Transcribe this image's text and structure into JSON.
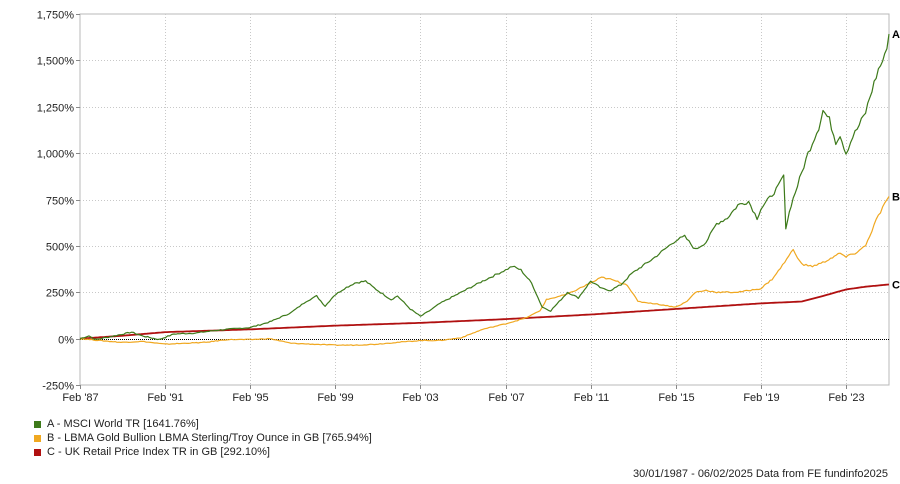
{
  "chart_data": {
    "type": "line",
    "title": "",
    "xlabel": "",
    "ylabel": "",
    "x_ticks": [
      "Feb '87",
      "Feb '91",
      "Feb '95",
      "Feb '99",
      "Feb '03",
      "Feb '07",
      "Feb '11",
      "Feb '15",
      "Feb '19",
      "Feb '23"
    ],
    "x_range": [
      1987.08,
      2025.1
    ],
    "ylim": [
      -250,
      1750
    ],
    "y_ticks": [
      -250,
      0,
      250,
      500,
      750,
      1000,
      1250,
      1500,
      1750
    ],
    "y_tick_labels": [
      "-250%",
      "0%",
      "250%",
      "500%",
      "750%",
      "1,000%",
      "1,250%",
      "1,500%",
      "1,750%"
    ],
    "grid": true,
    "legend_position": "bottom-left",
    "series": [
      {
        "name": "A - MSCI World TR [1641.76%]",
        "end_label": "A",
        "color": "#3d7a1a",
        "points": [
          [
            1987.08,
            0
          ],
          [
            1987.5,
            15
          ],
          [
            1987.8,
            -5
          ],
          [
            1988.5,
            10
          ],
          [
            1989.5,
            35
          ],
          [
            1990.0,
            15
          ],
          [
            1990.8,
            -5
          ],
          [
            1991.5,
            25
          ],
          [
            1992.5,
            30
          ],
          [
            1993.5,
            45
          ],
          [
            1994.5,
            55
          ],
          [
            1995.08,
            60
          ],
          [
            1996.0,
            90
          ],
          [
            1997.0,
            140
          ],
          [
            1997.7,
            200
          ],
          [
            1998.2,
            230
          ],
          [
            1998.6,
            175
          ],
          [
            1999.0,
            230
          ],
          [
            1999.5,
            270
          ],
          [
            2000.0,
            300
          ],
          [
            2000.5,
            310
          ],
          [
            2001.0,
            265
          ],
          [
            2001.7,
            210
          ],
          [
            2002.0,
            230
          ],
          [
            2002.6,
            160
          ],
          [
            2003.08,
            120
          ],
          [
            2003.5,
            150
          ],
          [
            2004.0,
            190
          ],
          [
            2005.0,
            250
          ],
          [
            2006.0,
            310
          ],
          [
            2007.08,
            370
          ],
          [
            2007.4,
            390
          ],
          [
            2007.8,
            370
          ],
          [
            2008.3,
            300
          ],
          [
            2008.8,
            170
          ],
          [
            2009.2,
            150
          ],
          [
            2009.6,
            200
          ],
          [
            2010.0,
            250
          ],
          [
            2010.5,
            220
          ],
          [
            2011.08,
            310
          ],
          [
            2011.6,
            270
          ],
          [
            2012.0,
            260
          ],
          [
            2012.5,
            290
          ],
          [
            2013.0,
            350
          ],
          [
            2014.0,
            430
          ],
          [
            2015.08,
            530
          ],
          [
            2015.5,
            550
          ],
          [
            2016.0,
            480
          ],
          [
            2016.5,
            520
          ],
          [
            2017.0,
            620
          ],
          [
            2017.5,
            650
          ],
          [
            2018.0,
            720
          ],
          [
            2018.5,
            740
          ],
          [
            2018.9,
            650
          ],
          [
            2019.08,
            700
          ],
          [
            2019.5,
            760
          ],
          [
            2019.9,
            820
          ],
          [
            2020.15,
            880
          ],
          [
            2020.25,
            600
          ],
          [
            2020.5,
            720
          ],
          [
            2020.9,
            860
          ],
          [
            2021.3,
            1000
          ],
          [
            2021.8,
            1140
          ],
          [
            2022.0,
            1230
          ],
          [
            2022.3,
            1180
          ],
          [
            2022.6,
            1060
          ],
          [
            2022.8,
            1100
          ],
          [
            2023.08,
            1000
          ],
          [
            2023.4,
            1090
          ],
          [
            2023.7,
            1150
          ],
          [
            2024.0,
            1220
          ],
          [
            2024.3,
            1340
          ],
          [
            2024.6,
            1450
          ],
          [
            2024.9,
            1520
          ],
          [
            2025.1,
            1642
          ]
        ]
      },
      {
        "name": "B - LBMA Gold Bullion LBMA Sterling/Troy Ounce in GB [765.94%]",
        "end_label": "B",
        "color": "#f0a820",
        "points": [
          [
            1987.08,
            0
          ],
          [
            1988.0,
            -10
          ],
          [
            1989.0,
            -20
          ],
          [
            1990.0,
            -15
          ],
          [
            1991.08,
            -30
          ],
          [
            1992.0,
            -25
          ],
          [
            1993.0,
            -20
          ],
          [
            1994.0,
            -5
          ],
          [
            1995.08,
            -5
          ],
          [
            1996.0,
            0
          ],
          [
            1997.0,
            -25
          ],
          [
            1998.0,
            -30
          ],
          [
            1999.08,
            -35
          ],
          [
            2000.0,
            -35
          ],
          [
            2001.0,
            -30
          ],
          [
            2002.0,
            -20
          ],
          [
            2003.08,
            -10
          ],
          [
            2004.0,
            -10
          ],
          [
            2005.0,
            5
          ],
          [
            2006.0,
            50
          ],
          [
            2007.08,
            80
          ],
          [
            2008.0,
            110
          ],
          [
            2008.7,
            150
          ],
          [
            2009.0,
            210
          ],
          [
            2010.0,
            240
          ],
          [
            2011.08,
            300
          ],
          [
            2011.6,
            330
          ],
          [
            2012.0,
            320
          ],
          [
            2012.8,
            290
          ],
          [
            2013.3,
            200
          ],
          [
            2014.0,
            190
          ],
          [
            2015.08,
            170
          ],
          [
            2015.6,
            200
          ],
          [
            2016.0,
            250
          ],
          [
            2016.5,
            260
          ],
          [
            2017.0,
            250
          ],
          [
            2018.0,
            250
          ],
          [
            2019.08,
            270
          ],
          [
            2019.6,
            320
          ],
          [
            2020.0,
            380
          ],
          [
            2020.6,
            480
          ],
          [
            2021.0,
            400
          ],
          [
            2021.5,
            390
          ],
          [
            2022.0,
            410
          ],
          [
            2022.8,
            460
          ],
          [
            2023.08,
            440
          ],
          [
            2023.5,
            460
          ],
          [
            2024.0,
            500
          ],
          [
            2024.5,
            640
          ],
          [
            2025.1,
            766
          ]
        ]
      },
      {
        "name": "C - UK Retail Price Index TR in GB [292.10%]",
        "end_label": "C",
        "color": "#b01010",
        "points": [
          [
            1987.08,
            0
          ],
          [
            1989.0,
            15
          ],
          [
            1991.08,
            35
          ],
          [
            1995.08,
            50
          ],
          [
            1999.08,
            70
          ],
          [
            2003.08,
            85
          ],
          [
            2007.08,
            105
          ],
          [
            2011.08,
            130
          ],
          [
            2015.08,
            160
          ],
          [
            2019.08,
            190
          ],
          [
            2021.0,
            200
          ],
          [
            2022.0,
            230
          ],
          [
            2023.08,
            265
          ],
          [
            2024.0,
            280
          ],
          [
            2025.1,
            292
          ]
        ]
      }
    ]
  },
  "footer_text": "30/01/1987 - 06/02/2025 Data from FE fundinfo2025"
}
